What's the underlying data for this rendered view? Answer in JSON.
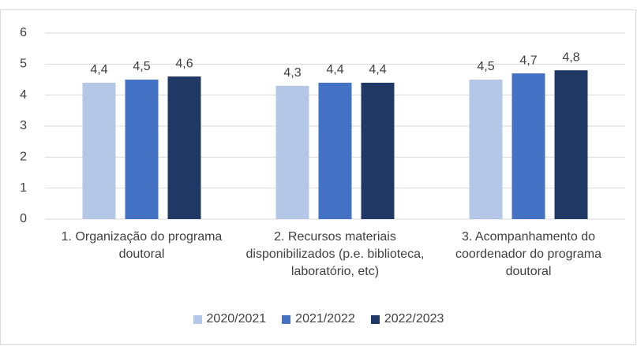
{
  "chart_data": {
    "type": "bar",
    "categories": [
      "1. Organização do programa doutoral",
      "2. Recursos materiais disponibilizados (p.e. biblioteca, laboratório, etc)",
      "3. Acompanhamento do coordenador do programa doutoral"
    ],
    "series": [
      {
        "name": "2020/2021",
        "color": "#b4c7e7",
        "values": [
          4.4,
          4.3,
          4.5
        ],
        "value_labels": [
          "4,4",
          "4,3",
          "4,5"
        ]
      },
      {
        "name": "2021/2022",
        "color": "#4472c4",
        "values": [
          4.5,
          4.4,
          4.7
        ],
        "value_labels": [
          "4,5",
          "4,4",
          "4,7"
        ]
      },
      {
        "name": "2022/2023",
        "color": "#203864",
        "values": [
          4.6,
          4.4,
          4.8
        ],
        "value_labels": [
          "4,6",
          "4,4",
          "4,8"
        ]
      }
    ],
    "ylim": [
      0,
      6
    ],
    "yticks": [
      0,
      1,
      2,
      3,
      4,
      5,
      6
    ],
    "grid": true,
    "legend": "bottom"
  }
}
